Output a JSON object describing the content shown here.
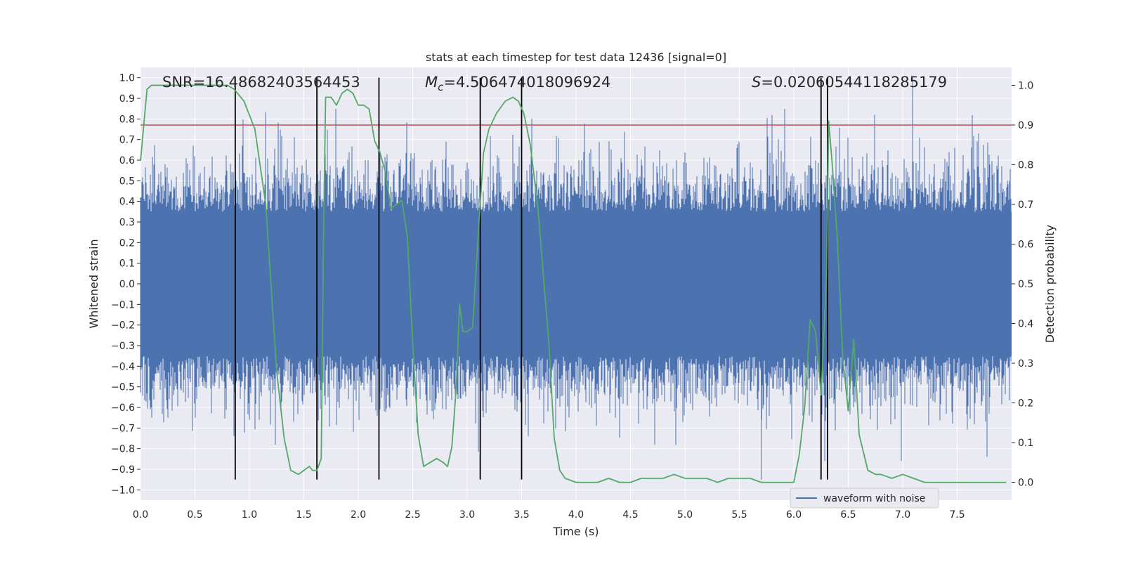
{
  "chart_data": {
    "type": "line",
    "title": "stats at each timestep for test data 12436 [signal=0]",
    "xlabel": "Time (s)",
    "ylabel_left": "Whitened strain",
    "ylabel_right": "Detection probability",
    "xlim": [
      0.0,
      8.0
    ],
    "ylim_left": [
      -1.05,
      1.05
    ],
    "ylim_right": [
      -0.045,
      1.045
    ],
    "x_ticks": [
      "0.0",
      "0.5",
      "1.0",
      "1.5",
      "2.0",
      "2.5",
      "3.0",
      "3.5",
      "4.0",
      "4.5",
      "5.0",
      "5.5",
      "6.0",
      "6.5",
      "7.0",
      "7.5"
    ],
    "y_ticks_left": [
      "1.0",
      "0.9",
      "0.8",
      "0.7",
      "0.6",
      "0.5",
      "0.4",
      "0.3",
      "0.2",
      "0.1",
      "0.0",
      "−0.1",
      "−0.2",
      "−0.3",
      "−0.4",
      "−0.5",
      "−0.6",
      "−0.7",
      "−0.8",
      "−0.9",
      "−1.0"
    ],
    "y_ticks_right": [
      "1.0",
      "0.9",
      "0.8",
      "0.7",
      "0.6",
      "0.5",
      "0.4",
      "0.3",
      "0.2",
      "0.1",
      "0.0"
    ],
    "grid": true,
    "legend": {
      "placement": "bottom-right",
      "entries": [
        {
          "label": "waveform with noise",
          "color": "#4c72b0"
        }
      ]
    },
    "annotations": {
      "snr": "SNR=16.48682403564453",
      "mc_symbol": "M",
      "mc_sub": "c",
      "mc_value": "=4.506474018096924",
      "s_symbol": "S",
      "s_value": "=0.02060544118285179"
    },
    "threshold": {
      "value": 0.9,
      "axis": "right",
      "color": "#c44e52"
    },
    "vertical_lines_x": [
      0.87,
      1.62,
      2.19,
      3.12,
      3.5,
      6.25,
      6.31
    ],
    "vertical_lines_range": [
      -0.95,
      1.0
    ],
    "waveform": {
      "name": "waveform with noise",
      "color": "#4c72b0",
      "x_range": [
        0.0,
        8.0
      ],
      "sample_rate_hz": 2048,
      "core_band": [
        -0.35,
        0.35
      ],
      "max": 1.0,
      "min": -0.95
    },
    "series": [
      {
        "name": "detection probability",
        "axis": "right",
        "color": "#55a868",
        "x": [
          0.0,
          0.06,
          0.1,
          0.2,
          0.3,
          0.4,
          0.5,
          0.6,
          0.7,
          0.8,
          0.86,
          0.95,
          1.05,
          1.15,
          1.25,
          1.32,
          1.38,
          1.45,
          1.5,
          1.55,
          1.58,
          1.62,
          1.66,
          1.68,
          1.7,
          1.75,
          1.8,
          1.85,
          1.9,
          1.95,
          2.0,
          2.05,
          2.1,
          2.15,
          2.2,
          2.25,
          2.3,
          2.4,
          2.45,
          2.5,
          2.55,
          2.6,
          2.66,
          2.72,
          2.78,
          2.82,
          2.86,
          2.9,
          2.93,
          2.96,
          3.0,
          3.05,
          3.1,
          3.15,
          3.2,
          3.27,
          3.35,
          3.42,
          3.47,
          3.52,
          3.58,
          3.65,
          3.75,
          3.8,
          3.85,
          3.9,
          4.0,
          4.1,
          4.2,
          4.3,
          4.4,
          4.5,
          4.6,
          4.7,
          4.8,
          4.9,
          5.0,
          5.1,
          5.2,
          5.3,
          5.4,
          5.5,
          5.6,
          5.7,
          5.8,
          5.9,
          6.0,
          6.05,
          6.1,
          6.15,
          6.2,
          6.25,
          6.3,
          6.32,
          6.35,
          6.4,
          6.45,
          6.5,
          6.55,
          6.6,
          6.68,
          6.75,
          6.8,
          6.9,
          7.0,
          7.1,
          7.2,
          7.4,
          7.6,
          7.8,
          7.95
        ],
        "y": [
          0.81,
          0.99,
          1.0,
          1.0,
          1.0,
          1.0,
          1.0,
          1.0,
          1.0,
          1.0,
          0.99,
          0.96,
          0.89,
          0.7,
          0.28,
          0.11,
          0.03,
          0.02,
          0.03,
          0.04,
          0.03,
          0.03,
          0.06,
          0.6,
          0.97,
          0.97,
          0.95,
          0.98,
          0.99,
          0.98,
          0.95,
          0.95,
          0.94,
          0.86,
          0.83,
          0.78,
          0.69,
          0.71,
          0.62,
          0.35,
          0.12,
          0.04,
          0.05,
          0.06,
          0.05,
          0.04,
          0.09,
          0.24,
          0.45,
          0.38,
          0.38,
          0.39,
          0.62,
          0.83,
          0.89,
          0.93,
          0.96,
          0.97,
          0.96,
          0.93,
          0.85,
          0.69,
          0.35,
          0.11,
          0.03,
          0.01,
          0.0,
          0.0,
          0.0,
          0.01,
          0.0,
          0.0,
          0.01,
          0.01,
          0.01,
          0.02,
          0.01,
          0.01,
          0.01,
          0.0,
          0.01,
          0.01,
          0.01,
          0.0,
          0.0,
          0.0,
          0.0,
          0.07,
          0.19,
          0.41,
          0.38,
          0.22,
          0.52,
          0.91,
          0.81,
          0.61,
          0.31,
          0.18,
          0.36,
          0.12,
          0.03,
          0.02,
          0.02,
          0.01,
          0.02,
          0.01,
          0.0,
          0.0,
          0.0,
          0.0,
          0.0
        ]
      }
    ]
  }
}
